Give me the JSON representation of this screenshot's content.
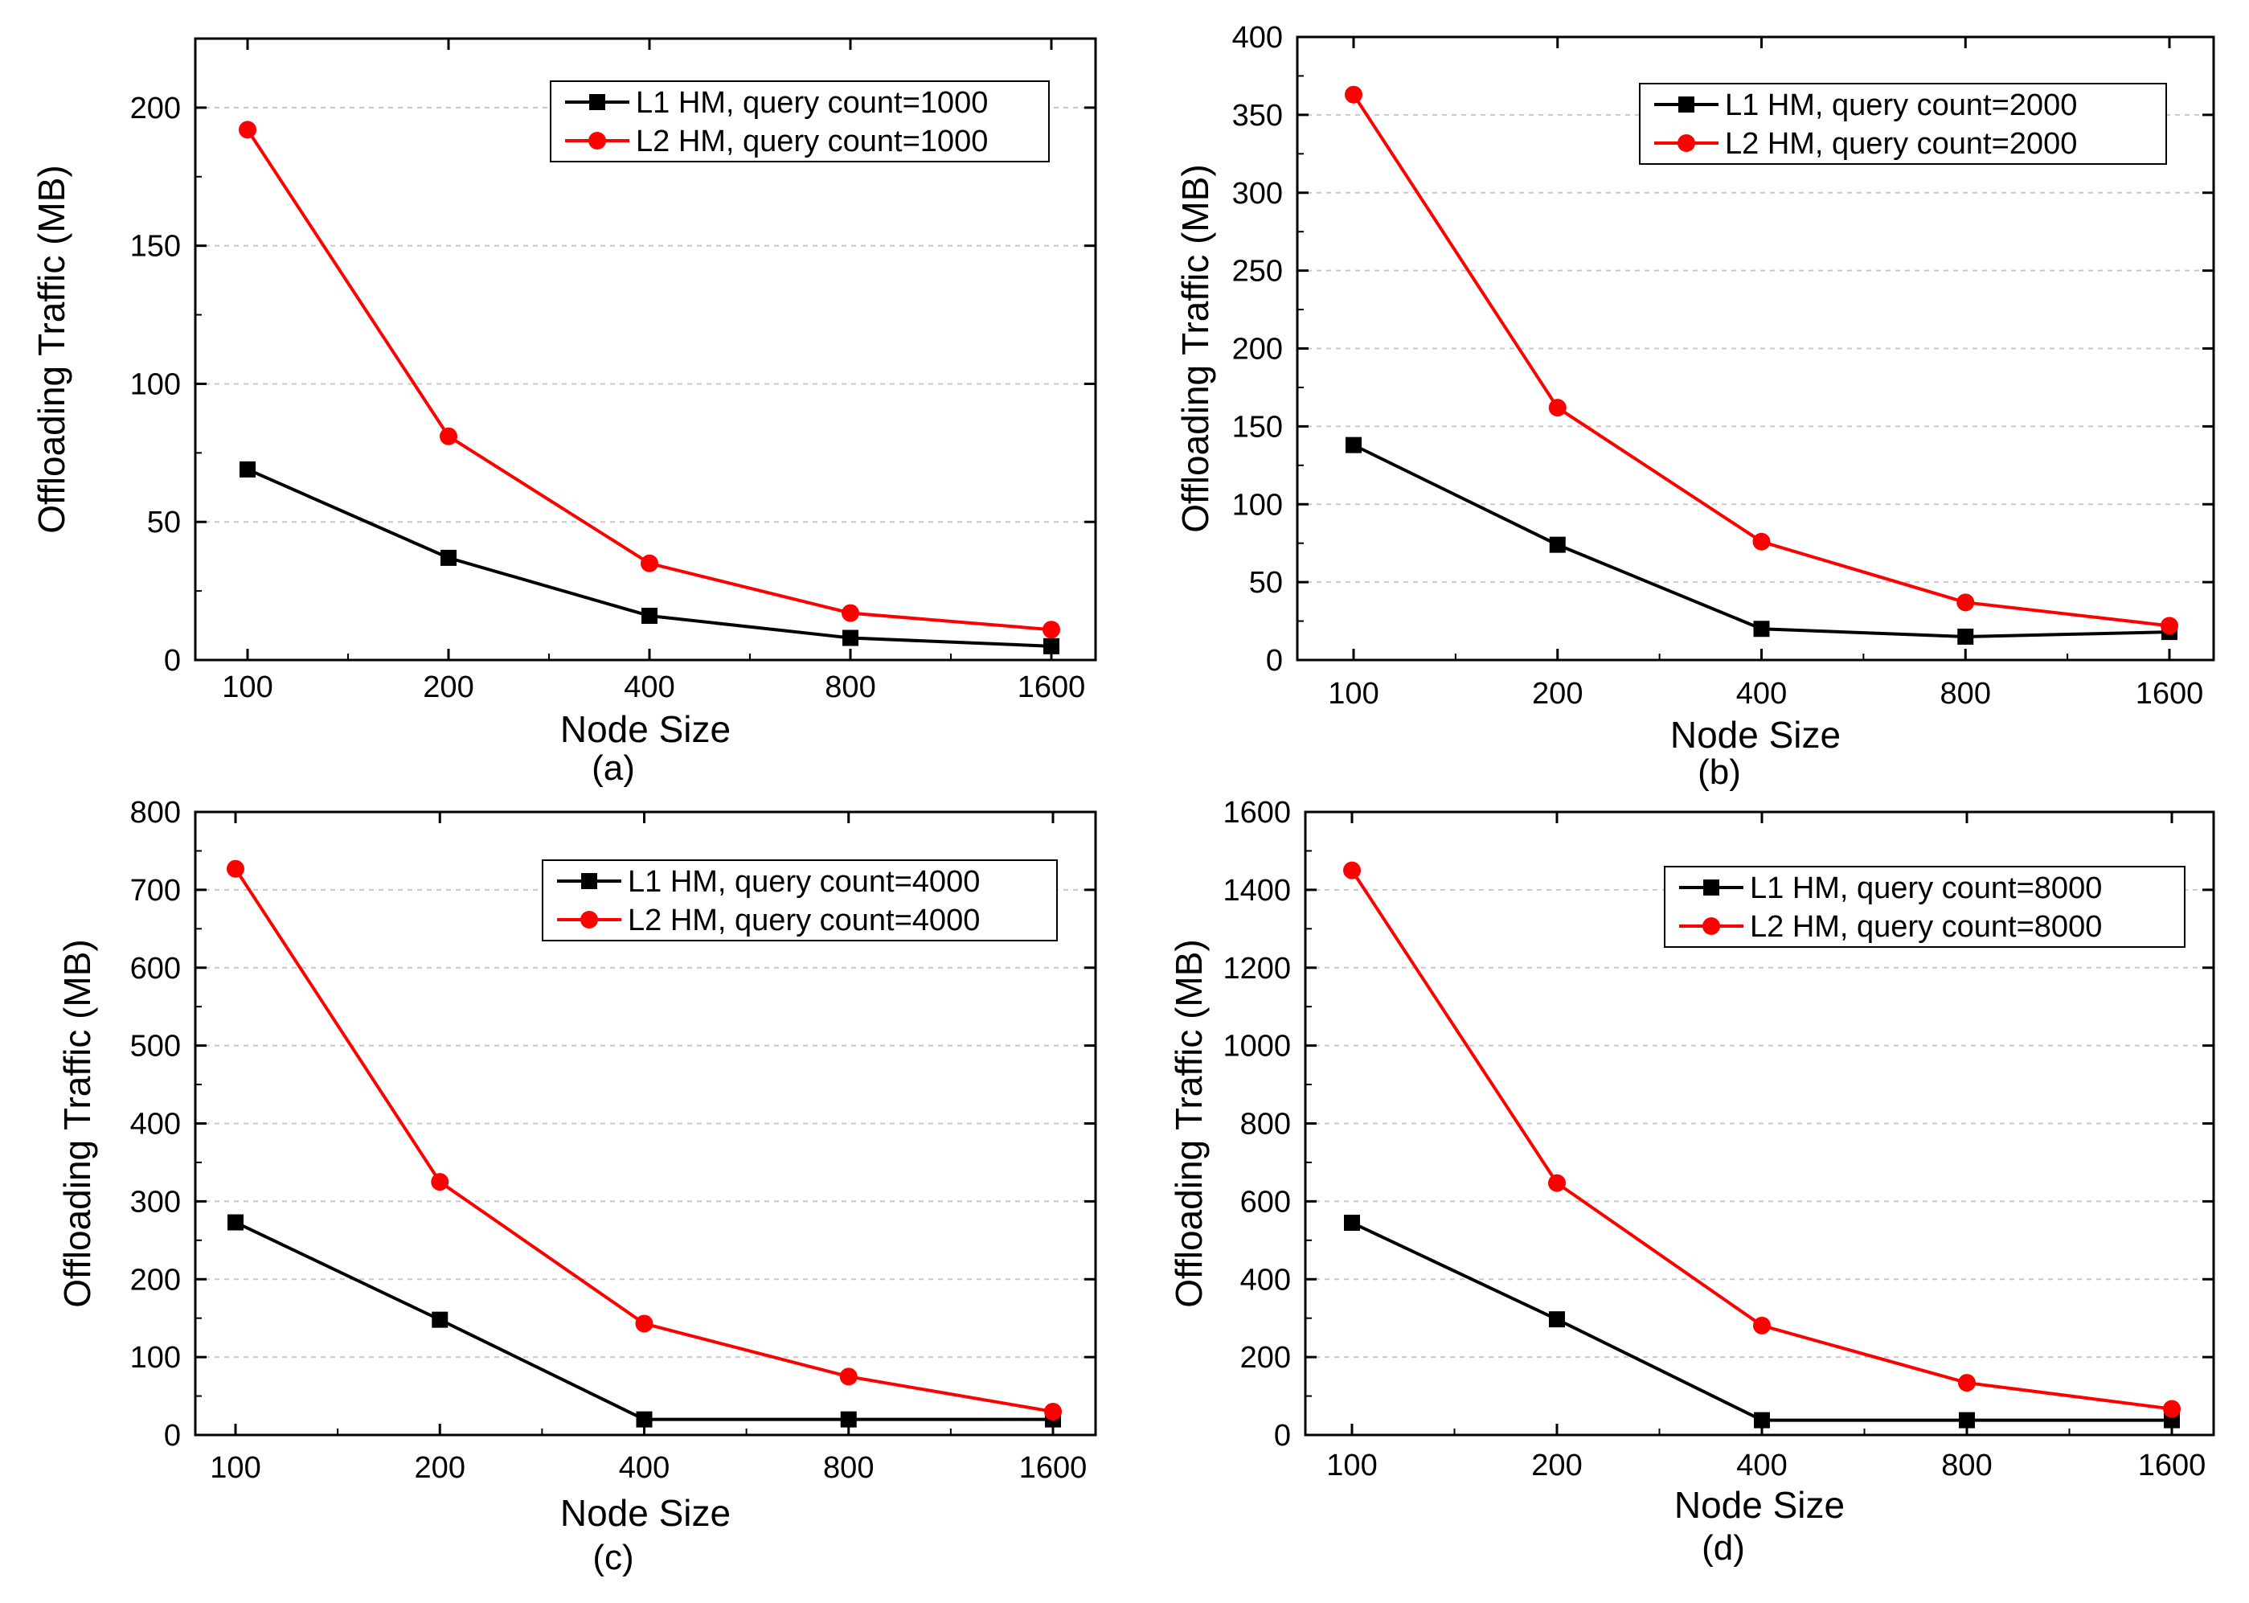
{
  "chart_data": [
    {
      "type": "line",
      "panel_label": "(a)",
      "categories": [
        "100",
        "200",
        "400",
        "800",
        "1600"
      ],
      "xlabel": "Node Size",
      "ylabel": "Offloading Traffic (MB)",
      "ylim": [
        0,
        225
      ],
      "yticks": [
        0,
        50,
        100,
        150,
        200
      ],
      "ytick_labels": [
        "0",
        "50",
        "100",
        "150",
        "200"
      ],
      "grid": true,
      "legend_position": "top-right",
      "series": [
        {
          "name": "L1 HM, query count=1000",
          "color": "#000000",
          "marker": "square",
          "values": [
            69,
            37,
            16,
            8,
            5
          ]
        },
        {
          "name": "L2 HM, query count=1000",
          "color": "#ff0000",
          "marker": "circle",
          "values": [
            192,
            81,
            35,
            17,
            11
          ]
        }
      ]
    },
    {
      "type": "line",
      "panel_label": "(b)",
      "categories": [
        "100",
        "200",
        "400",
        "800",
        "1600"
      ],
      "xlabel": "Node Size",
      "ylabel": "Offloading Traffic (MB)",
      "ylim": [
        0,
        400
      ],
      "yticks": [
        0,
        50,
        100,
        150,
        200,
        250,
        300,
        350,
        400
      ],
      "ytick_labels": [
        "0",
        "50",
        "100",
        "150",
        "200",
        "250",
        "300",
        "350",
        "400"
      ],
      "grid": true,
      "legend_position": "top-right",
      "series": [
        {
          "name": "L1 HM, query count=2000",
          "color": "#000000",
          "marker": "square",
          "values": [
            138,
            74,
            20,
            15,
            18
          ]
        },
        {
          "name": "L2 HM, query count=2000",
          "color": "#ff0000",
          "marker": "circle",
          "values": [
            363,
            162,
            76,
            37,
            22
          ]
        }
      ]
    },
    {
      "type": "line",
      "panel_label": "(c)",
      "categories": [
        "100",
        "200",
        "400",
        "800",
        "1600"
      ],
      "xlabel": "Node Size",
      "ylabel": "Offloading Traffic (MB)",
      "ylim": [
        0,
        800
      ],
      "yticks": [
        0,
        100,
        200,
        300,
        400,
        500,
        600,
        700,
        800
      ],
      "ytick_labels": [
        "0",
        "100",
        "200",
        "300",
        "400",
        "500",
        "600",
        "700",
        "800"
      ],
      "grid": true,
      "legend_position": "top-right",
      "series": [
        {
          "name": "L1 HM, query count=4000",
          "color": "#000000",
          "marker": "square",
          "values": [
            273,
            148,
            20,
            20,
            20
          ]
        },
        {
          "name": "L2 HM, query count=4000",
          "color": "#ff0000",
          "marker": "circle",
          "values": [
            727,
            325,
            143,
            75,
            30
          ]
        }
      ]
    },
    {
      "type": "line",
      "panel_label": "(d)",
      "categories": [
        "100",
        "200",
        "400",
        "800",
        "1600"
      ],
      "xlabel": "Node Size",
      "ylabel": "Offloading Traffic (MB)",
      "ylim": [
        0,
        1600
      ],
      "yticks": [
        0,
        200,
        400,
        600,
        800,
        1000,
        1200,
        1400,
        1600
      ],
      "ytick_labels": [
        "0",
        "200",
        "400",
        "600",
        "800",
        "1000",
        "1200",
        "1400",
        "1600"
      ],
      "grid": true,
      "legend_position": "top-right",
      "series": [
        {
          "name": "L1 HM, query count=8000",
          "color": "#000000",
          "marker": "square",
          "values": [
            545,
            297,
            38,
            38,
            38
          ]
        },
        {
          "name": "L2 HM, query count=8000",
          "color": "#ff0000",
          "marker": "circle",
          "values": [
            1450,
            647,
            281,
            134,
            67
          ]
        }
      ]
    }
  ]
}
